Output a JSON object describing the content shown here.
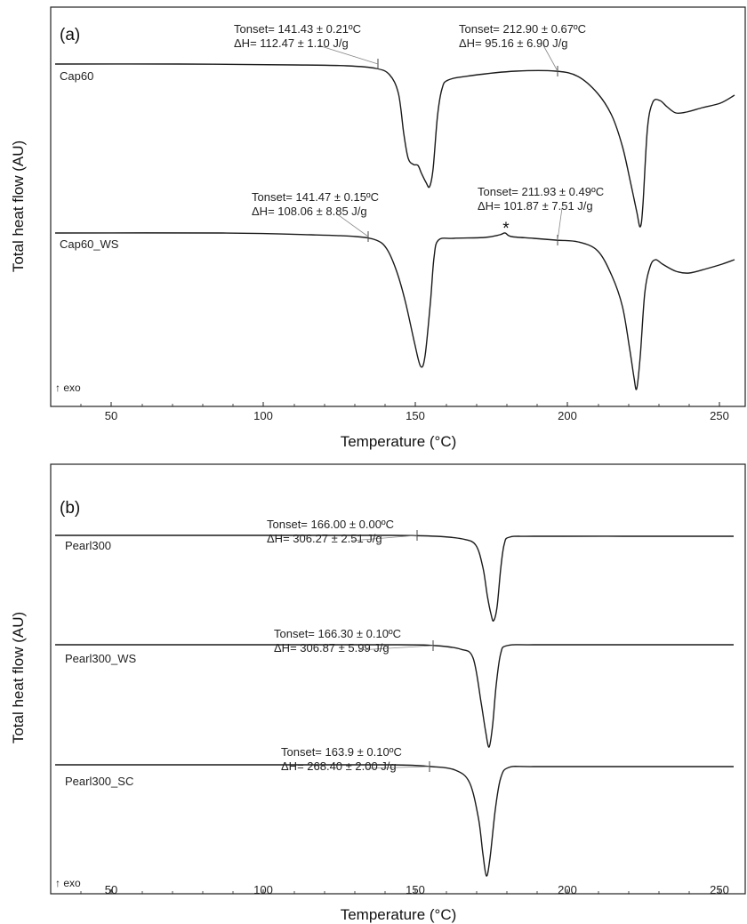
{
  "chart_data": [
    {
      "panel_label": "(a)",
      "type": "line",
      "xlabel": "Temperature (°C)",
      "ylabel": "Total heat flow (AU)",
      "xticks": [
        "50",
        "100",
        "150",
        "200",
        "250"
      ],
      "xlim": [
        30,
        250
      ],
      "exo_label": "↑ exo",
      "series": [
        {
          "name": "Cap60",
          "annotations": [
            {
              "onset": 141.43,
              "line1": "Tonset= 141.43 ± 0.21ºC",
              "line2": "ΔH= 112.47 ± 1.10 J/g"
            },
            {
              "onset": 212.9,
              "line1": "Tonset= 212.90 ± 0.67ºC",
              "line2": "ΔH= 95.16 ± 6.90 J/g"
            }
          ]
        },
        {
          "name": "Cap60_WS",
          "marker": "*",
          "annotations": [
            {
              "onset": 141.47,
              "line1": "Tonset= 141.47 ± 0.15ºC",
              "line2": "ΔH= 108.06 ± 8.85 J/g"
            },
            {
              "onset": 211.93,
              "line1": "Tonset= 211.93 ± 0.49ºC",
              "line2": "ΔH= 101.87 ± 7.51 J/g"
            }
          ]
        }
      ]
    },
    {
      "panel_label": "(b)",
      "type": "line",
      "xlabel": "Temperature (°C)",
      "ylabel": "Total heat flow (AU)",
      "xticks": [
        "50",
        "100",
        "150",
        "200",
        "250"
      ],
      "xlim": [
        30,
        250
      ],
      "exo_label": "↑ exo",
      "series": [
        {
          "name": "Pearl300",
          "annotations": [
            {
              "onset": 166.0,
              "line1": "Tonset= 166.00 ± 0.00ºC",
              "line2": "ΔH= 306.27 ± 2.51 J/g"
            }
          ]
        },
        {
          "name": "Pearl300_WS",
          "annotations": [
            {
              "onset": 166.3,
              "line1": "Tonset= 166.30 ± 0.10ºC",
              "line2": "ΔH= 306.87 ± 5.99 J/g"
            }
          ]
        },
        {
          "name": "Pearl300_SC",
          "annotations": [
            {
              "onset": 163.9,
              "line1": "Tonset= 163.9 ± 0.10ºC",
              "line2": "ΔH= 268.40 ± 2.00 J/g"
            }
          ]
        }
      ]
    }
  ]
}
